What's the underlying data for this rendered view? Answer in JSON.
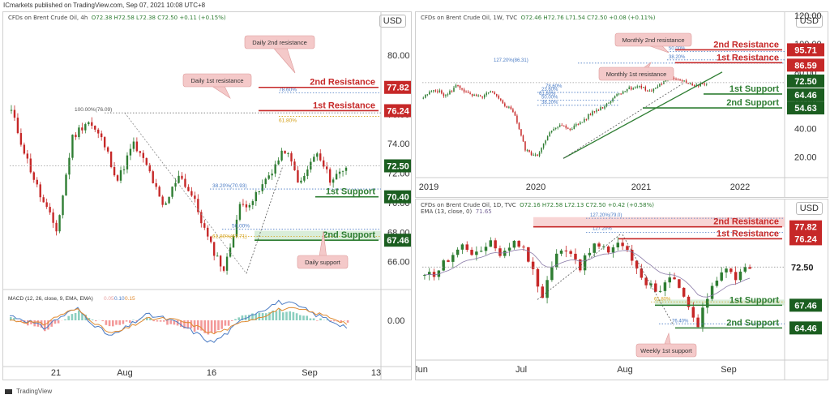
{
  "page": {
    "note": "ICmarkets published on TradingView.com, Sep 07, 2021 10:08 UTC+8",
    "footer": "TradingView"
  },
  "colors": {
    "red": "#c62828",
    "green": "#2e7d32",
    "up": "#2e7d32",
    "down": "#c62828",
    "callout_fill": "#f4c9c9",
    "zone_green": "#cfe8cf",
    "zone_red": "#f6caca"
  },
  "chart_data": [
    {
      "id": "h4",
      "type": "candlestick",
      "header": {
        "symbol": "CFDs on Brent Crude Oil, 4h",
        "ohlc": "O72.38  H72.58  L72.38  C72.50  +0.11 (+0.15%)"
      },
      "currency": "USD",
      "y_ticks": [
        "80.00",
        "78.00",
        "76.00",
        "74.00",
        "72.00",
        "70.00",
        "68.00",
        "66.00"
      ],
      "ylim": [
        64.5,
        81.6
      ],
      "x_ticks": [
        "21",
        "Aug",
        "16",
        "Sep",
        "13"
      ],
      "last_price": "72.50",
      "price_labels": [
        {
          "label": "2nd Resistance",
          "value": "77.82",
          "kind": "resistance"
        },
        {
          "label": "1st Resistance",
          "value": "76.24",
          "kind": "resistance"
        },
        {
          "label": "1st Support",
          "value": "70.40",
          "kind": "support"
        },
        {
          "label": "2nd Support",
          "value": "67.46",
          "kind": "support"
        }
      ],
      "fib_labels": [
        "100.00%(76.09)",
        "78.60%",
        "61.80%",
        "38.20%(70.93)",
        "61.80%(67.71)",
        "50.00%"
      ],
      "callouts": [
        "Daily 2nd resistance",
        "Daily 1st resistance",
        "Daily support"
      ],
      "macd": {
        "label": "MACD (12, 26, close, 9, EMA, EMA)",
        "values": [
          "0.05",
          "0.10",
          "0.15"
        ],
        "zero_tick": "0.00"
      }
    },
    {
      "id": "weekly",
      "type": "candlestick",
      "header": {
        "symbol": "CFDs on Brent Crude Oil, 1W, TVC",
        "ohlc": "O72.46  H72.76  L71.54  C72.50  +0.08 (+0.11%)"
      },
      "currency": "USD",
      "y_ticks": [
        "120.00",
        "100.00",
        "80.00",
        "60.00",
        "40.00",
        "20.00"
      ],
      "ylim": [
        10,
        120
      ],
      "x_ticks": [
        "2019",
        "2020",
        "2021",
        "2022"
      ],
      "last_price": "72.50",
      "price_labels": [
        {
          "label": "2nd Resistance",
          "value": "95.71",
          "kind": "resistance"
        },
        {
          "label": "1st Resistance",
          "value": "86.59",
          "kind": "resistance"
        },
        {
          "label": "1st Support",
          "value": "64.46",
          "kind": "support"
        },
        {
          "label": "2nd Support",
          "value": "54.63",
          "kind": "support"
        }
      ],
      "fib_labels": [
        "50.00%",
        "127.20%(86.31)",
        "38.20%",
        "23.60%",
        "50.00%",
        "38.20%",
        "78.60%",
        "61.80%"
      ],
      "callouts": [
        "Monthly 2nd resistance",
        "Monthly 1st resistance"
      ]
    },
    {
      "id": "daily",
      "type": "candlestick",
      "header": {
        "symbol": "CFDs on Brent Crude Oil, 1D, TVC",
        "ohlc": "O72.16  H72.58  L72.13  C72.50  +0.42 (+0.58%)",
        "ema": "EMA (13, close, 0)",
        "ema_value": "71.65"
      },
      "currency": "USD",
      "y_ticks": [],
      "ylim": [
        63,
        79.5
      ],
      "x_ticks": [
        "Jun",
        "Jul",
        "Aug",
        "Sep"
      ],
      "last_price": "72.50",
      "price_labels": [
        {
          "label": "2nd Resistance",
          "value": "77.82",
          "kind": "resistance"
        },
        {
          "label": "1st Resistance",
          "value": "76.24",
          "kind": "resistance"
        },
        {
          "label": "1st Support",
          "value": "67.46",
          "kind": "support"
        },
        {
          "label": "2nd Support",
          "value": "64.46",
          "kind": "support"
        }
      ],
      "fib_labels": [
        "127.20%(79.0)",
        "127.20%",
        "61.80%",
        "76.40%"
      ],
      "callouts": [
        "Weekly 1st support"
      ]
    }
  ]
}
